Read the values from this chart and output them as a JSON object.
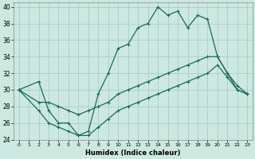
{
  "xlabel": "Humidex (Indice chaleur)",
  "bg_color": "#cce8e0",
  "grid_color": "#a8cfc8",
  "line_color": "#1a6b5a",
  "xlim": [
    -0.5,
    23.5
  ],
  "ylim": [
    24,
    40.5
  ],
  "xticks": [
    0,
    1,
    2,
    3,
    4,
    5,
    6,
    7,
    8,
    9,
    10,
    11,
    12,
    13,
    14,
    15,
    16,
    17,
    18,
    19,
    20,
    21,
    22,
    23
  ],
  "yticks": [
    24,
    26,
    28,
    30,
    32,
    34,
    36,
    38,
    40
  ],
  "line1_x": [
    0,
    2,
    3,
    4,
    5,
    6,
    7,
    8,
    9,
    10,
    11,
    12,
    13,
    14,
    15,
    16,
    17,
    18,
    19,
    20,
    21,
    22,
    23
  ],
  "line1_y": [
    30,
    31,
    27.5,
    26,
    26,
    24.5,
    25,
    29.5,
    32,
    35,
    35.5,
    37.5,
    38,
    40,
    39,
    39.5,
    37.5,
    39,
    38.5,
    34,
    32,
    30.5,
    29.5
  ],
  "line2_x": [
    0,
    2,
    3,
    4,
    5,
    6,
    7,
    8,
    9,
    10,
    11,
    12,
    13,
    14,
    15,
    16,
    17,
    18,
    19,
    20,
    21,
    22,
    23
  ],
  "line2_y": [
    30,
    28.5,
    28.5,
    28,
    27.5,
    27,
    27.5,
    28,
    28.5,
    29.5,
    30,
    30.5,
    31,
    31.5,
    32,
    32.5,
    33,
    33.5,
    34,
    34,
    32,
    30,
    29.5
  ],
  "line3_x": [
    0,
    2,
    3,
    4,
    5,
    6,
    7,
    8,
    9,
    10,
    11,
    12,
    13,
    14,
    15,
    16,
    17,
    18,
    19,
    20,
    21,
    22,
    23
  ],
  "line3_y": [
    30,
    27.5,
    26,
    25.5,
    25,
    24.5,
    24.5,
    25.5,
    26.5,
    27.5,
    28,
    28.5,
    29,
    29.5,
    30,
    30.5,
    31,
    31.5,
    32,
    33,
    31.5,
    30,
    29.5
  ]
}
